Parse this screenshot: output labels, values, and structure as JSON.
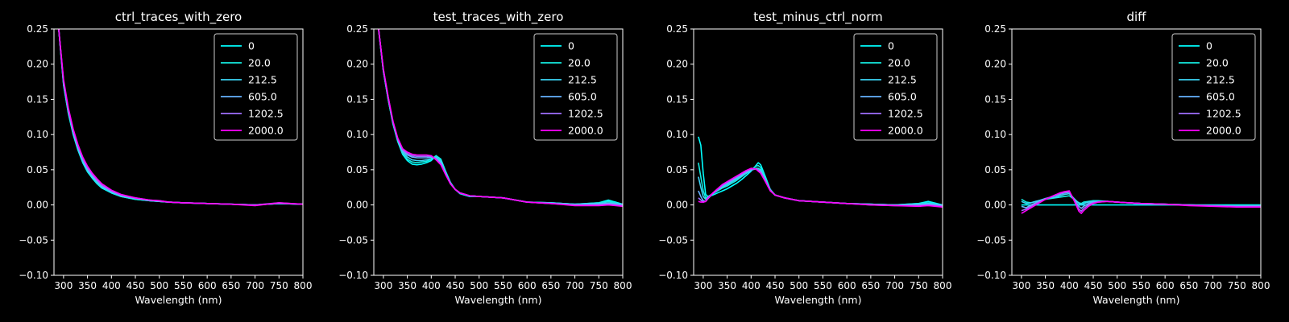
{
  "figure": {
    "background": "#000000",
    "foreground": "#ffffff"
  },
  "chart_data": [
    {
      "type": "line",
      "title": "ctrl_traces_with_zero",
      "xlabel": "Wavelength (nm)",
      "ylabel": "",
      "xlim": [
        280,
        800
      ],
      "ylim": [
        -0.1,
        0.25
      ],
      "xticks": [
        "300",
        "350",
        "400",
        "450",
        "500",
        "550",
        "600",
        "650",
        "700",
        "750",
        "800"
      ],
      "yticks": [
        "−0.10",
        "−0.05",
        "0.00",
        "0.05",
        "0.10",
        "0.15",
        "0.20",
        "0.25"
      ],
      "grid": false,
      "legend_position": "top-right",
      "x": [
        290,
        300,
        310,
        320,
        330,
        340,
        350,
        360,
        370,
        380,
        400,
        420,
        450,
        480,
        500,
        520,
        550,
        600,
        650,
        700,
        750,
        800
      ],
      "series": [
        {
          "name": "0",
          "color": "#00ffff",
          "values": [
            0.25,
            0.17,
            0.13,
            0.1,
            0.078,
            0.06,
            0.047,
            0.038,
            0.03,
            0.024,
            0.017,
            0.012,
            0.008,
            0.006,
            0.005,
            0.004,
            0.003,
            0.002,
            0.001,
            0.0,
            0.002,
            0.001
          ]
        },
        {
          "name": "20.0",
          "color": "#14ebe0",
          "values": [
            0.25,
            0.171,
            0.131,
            0.101,
            0.079,
            0.061,
            0.048,
            0.039,
            0.031,
            0.025,
            0.018,
            0.012,
            0.008,
            0.006,
            0.005,
            0.004,
            0.003,
            0.002,
            0.001,
            0.0,
            0.002,
            0.001
          ]
        },
        {
          "name": "212.5",
          "color": "#3cd4f5",
          "values": [
            0.25,
            0.172,
            0.132,
            0.102,
            0.08,
            0.062,
            0.049,
            0.04,
            0.032,
            0.026,
            0.018,
            0.013,
            0.009,
            0.006,
            0.005,
            0.004,
            0.003,
            0.002,
            0.001,
            0.0,
            0.002,
            0.001
          ]
        },
        {
          "name": "605.0",
          "color": "#66b2ff",
          "values": [
            0.25,
            0.174,
            0.134,
            0.104,
            0.082,
            0.064,
            0.051,
            0.042,
            0.034,
            0.027,
            0.019,
            0.013,
            0.009,
            0.007,
            0.005,
            0.004,
            0.003,
            0.002,
            0.001,
            0.0,
            0.002,
            0.001
          ]
        },
        {
          "name": "1202.5",
          "color": "#a070ff",
          "values": [
            0.25,
            0.176,
            0.136,
            0.106,
            0.084,
            0.066,
            0.053,
            0.043,
            0.035,
            0.028,
            0.02,
            0.014,
            0.01,
            0.007,
            0.006,
            0.004,
            0.003,
            0.002,
            0.001,
            0.0,
            0.003,
            0.001
          ]
        },
        {
          "name": "2000.0",
          "color": "#ff00ff",
          "values": [
            0.25,
            0.178,
            0.138,
            0.108,
            0.086,
            0.068,
            0.055,
            0.045,
            0.037,
            0.03,
            0.021,
            0.015,
            0.01,
            0.007,
            0.006,
            0.004,
            0.003,
            0.002,
            0.001,
            -0.001,
            0.003,
            0.001
          ]
        }
      ]
    },
    {
      "type": "line",
      "title": "test_traces_with_zero",
      "xlabel": "Wavelength (nm)",
      "ylabel": "",
      "xlim": [
        280,
        800
      ],
      "ylim": [
        -0.1,
        0.25
      ],
      "xticks": [
        "300",
        "350",
        "400",
        "450",
        "500",
        "550",
        "600",
        "650",
        "700",
        "750",
        "800"
      ],
      "yticks": [
        "−0.10",
        "−0.05",
        "0.00",
        "0.05",
        "0.10",
        "0.15",
        "0.20",
        "0.25"
      ],
      "grid": false,
      "legend_position": "top-right",
      "x": [
        290,
        300,
        310,
        320,
        330,
        340,
        350,
        360,
        370,
        380,
        390,
        400,
        410,
        420,
        430,
        440,
        450,
        460,
        480,
        500,
        550,
        600,
        650,
        700,
        750,
        770,
        800
      ],
      "series": [
        {
          "name": "0",
          "color": "#00ffff",
          "values": [
            0.25,
            0.19,
            0.15,
            0.115,
            0.09,
            0.072,
            0.063,
            0.058,
            0.057,
            0.058,
            0.06,
            0.063,
            0.07,
            0.065,
            0.048,
            0.032,
            0.022,
            0.016,
            0.012,
            0.012,
            0.01,
            0.004,
            0.003,
            0.001,
            0.003,
            0.007,
            0.001
          ]
        },
        {
          "name": "20.0",
          "color": "#14ebe0",
          "values": [
            0.25,
            0.19,
            0.15,
            0.115,
            0.091,
            0.073,
            0.065,
            0.061,
            0.06,
            0.061,
            0.062,
            0.065,
            0.07,
            0.064,
            0.047,
            0.032,
            0.022,
            0.017,
            0.013,
            0.012,
            0.01,
            0.004,
            0.003,
            0.001,
            0.003,
            0.005,
            0.001
          ]
        },
        {
          "name": "212.5",
          "color": "#3cd4f5",
          "values": [
            0.25,
            0.19,
            0.151,
            0.116,
            0.092,
            0.075,
            0.068,
            0.064,
            0.063,
            0.063,
            0.064,
            0.066,
            0.068,
            0.062,
            0.046,
            0.031,
            0.022,
            0.017,
            0.013,
            0.012,
            0.01,
            0.004,
            0.003,
            0.001,
            0.002,
            0.003,
            0.001
          ]
        },
        {
          "name": "605.0",
          "color": "#66b2ff",
          "values": [
            0.25,
            0.191,
            0.152,
            0.117,
            0.093,
            0.077,
            0.071,
            0.068,
            0.067,
            0.067,
            0.067,
            0.068,
            0.066,
            0.06,
            0.045,
            0.031,
            0.022,
            0.017,
            0.013,
            0.012,
            0.01,
            0.004,
            0.002,
            0.0,
            0.001,
            0.002,
            0.0
          ]
        },
        {
          "name": "1202.5",
          "color": "#a070ff",
          "values": [
            0.25,
            0.192,
            0.153,
            0.118,
            0.094,
            0.079,
            0.073,
            0.07,
            0.069,
            0.069,
            0.069,
            0.069,
            0.065,
            0.058,
            0.044,
            0.03,
            0.022,
            0.017,
            0.013,
            0.012,
            0.01,
            0.004,
            0.002,
            0.0,
            0.0,
            0.001,
            -0.001
          ]
        },
        {
          "name": "2000.0",
          "color": "#ff00ff",
          "values": [
            0.25,
            0.193,
            0.154,
            0.119,
            0.095,
            0.08,
            0.075,
            0.072,
            0.071,
            0.071,
            0.071,
            0.07,
            0.064,
            0.057,
            0.043,
            0.03,
            0.022,
            0.017,
            0.013,
            0.012,
            0.01,
            0.004,
            0.002,
            -0.001,
            -0.001,
            0.0,
            -0.002
          ]
        }
      ]
    },
    {
      "type": "line",
      "title": "test_minus_ctrl_norm",
      "xlabel": "Wavelength (nm)",
      "ylabel": "",
      "xlim": [
        280,
        800
      ],
      "ylim": [
        -0.1,
        0.25
      ],
      "xticks": [
        "300",
        "350",
        "400",
        "450",
        "500",
        "550",
        "600",
        "650",
        "700",
        "750",
        "800"
      ],
      "yticks": [
        "−0.10",
        "−0.05",
        "0.00",
        "0.05",
        "0.10",
        "0.15",
        "0.20",
        "0.25"
      ],
      "grid": false,
      "legend_position": "top-right",
      "x": [
        290,
        295,
        300,
        305,
        310,
        320,
        330,
        340,
        350,
        360,
        370,
        380,
        390,
        400,
        410,
        415,
        420,
        430,
        440,
        450,
        470,
        500,
        550,
        600,
        650,
        700,
        750,
        770,
        800
      ],
      "series": [
        {
          "name": "0",
          "color": "#00ffff",
          "values": [
            0.097,
            0.085,
            0.045,
            0.015,
            0.012,
            0.014,
            0.017,
            0.02,
            0.023,
            0.027,
            0.031,
            0.036,
            0.042,
            0.048,
            0.056,
            0.06,
            0.057,
            0.04,
            0.022,
            0.014,
            0.01,
            0.006,
            0.004,
            0.002,
            0.001,
            0.0,
            0.002,
            0.005,
            0.0
          ]
        },
        {
          "name": "20.0",
          "color": "#14ebe0",
          "values": [
            0.06,
            0.04,
            0.02,
            0.01,
            0.012,
            0.016,
            0.02,
            0.024,
            0.027,
            0.031,
            0.035,
            0.04,
            0.045,
            0.05,
            0.055,
            0.056,
            0.053,
            0.038,
            0.022,
            0.014,
            0.01,
            0.006,
            0.004,
            0.002,
            0.001,
            0.0,
            0.002,
            0.003,
            0.0
          ]
        },
        {
          "name": "212.5",
          "color": "#3cd4f5",
          "values": [
            0.04,
            0.025,
            0.012,
            0.008,
            0.01,
            0.016,
            0.021,
            0.025,
            0.029,
            0.033,
            0.037,
            0.041,
            0.045,
            0.049,
            0.052,
            0.052,
            0.05,
            0.036,
            0.021,
            0.014,
            0.01,
            0.006,
            0.004,
            0.002,
            0.001,
            0.0,
            0.001,
            0.002,
            0.0
          ]
        },
        {
          "name": "605.0",
          "color": "#66b2ff",
          "values": [
            0.02,
            0.012,
            0.006,
            0.005,
            0.009,
            0.016,
            0.022,
            0.027,
            0.031,
            0.035,
            0.039,
            0.043,
            0.047,
            0.05,
            0.051,
            0.05,
            0.048,
            0.035,
            0.021,
            0.014,
            0.01,
            0.006,
            0.004,
            0.002,
            0.001,
            0.0,
            0.0,
            0.001,
            -0.001
          ]
        },
        {
          "name": "1202.5",
          "color": "#a070ff",
          "values": [
            0.01,
            0.007,
            0.004,
            0.005,
            0.009,
            0.016,
            0.022,
            0.028,
            0.032,
            0.036,
            0.04,
            0.044,
            0.048,
            0.051,
            0.051,
            0.049,
            0.046,
            0.034,
            0.021,
            0.014,
            0.01,
            0.006,
            0.004,
            0.002,
            0.0,
            -0.001,
            -0.001,
            0.0,
            -0.002
          ]
        },
        {
          "name": "2000.0",
          "color": "#ff00ff",
          "values": [
            0.005,
            0.004,
            0.004,
            0.005,
            0.01,
            0.017,
            0.023,
            0.029,
            0.033,
            0.037,
            0.041,
            0.045,
            0.049,
            0.052,
            0.051,
            0.048,
            0.045,
            0.033,
            0.02,
            0.014,
            0.01,
            0.006,
            0.004,
            0.002,
            0.0,
            -0.001,
            -0.002,
            -0.001,
            -0.003
          ]
        }
      ]
    },
    {
      "type": "line",
      "title": "diff",
      "xlabel": "Wavelength (nm)",
      "ylabel": "",
      "xlim": [
        280,
        800
      ],
      "ylim": [
        -0.1,
        0.25
      ],
      "xticks": [
        "300",
        "350",
        "400",
        "450",
        "500",
        "550",
        "600",
        "650",
        "700",
        "750",
        "800"
      ],
      "yticks": [
        "−0.10",
        "−0.05",
        "0.00",
        "0.05",
        "0.10",
        "0.15",
        "0.20",
        "0.25"
      ],
      "grid": false,
      "legend_position": "top-right",
      "x": [
        300,
        310,
        320,
        330,
        340,
        350,
        360,
        370,
        380,
        390,
        400,
        410,
        420,
        425,
        430,
        440,
        450,
        460,
        480,
        500,
        550,
        600,
        650,
        700,
        750,
        800
      ],
      "series": [
        {
          "name": "0",
          "color": "#00ffff",
          "values": [
            0.0,
            0.0,
            0.0,
            0.0,
            0.0,
            0.0,
            0.0,
            0.0,
            0.0,
            0.0,
            0.0,
            0.0,
            0.0,
            0.0,
            0.0,
            0.0,
            0.0,
            0.0,
            0.0,
            0.0,
            0.0,
            0.0,
            0.0,
            0.0,
            0.0,
            0.0
          ]
        },
        {
          "name": "20.0",
          "color": "#14ebe0",
          "values": [
            0.008,
            0.004,
            0.003,
            0.005,
            0.006,
            0.008,
            0.009,
            0.01,
            0.011,
            0.012,
            0.013,
            0.008,
            0.003,
            0.002,
            0.004,
            0.005,
            0.006,
            0.006,
            0.005,
            0.004,
            0.002,
            0.001,
            0.0,
            -0.001,
            -0.001,
            -0.001
          ]
        },
        {
          "name": "212.5",
          "color": "#3cd4f5",
          "values": [
            0.005,
            0.002,
            0.003,
            0.005,
            0.007,
            0.009,
            0.01,
            0.011,
            0.013,
            0.015,
            0.016,
            0.009,
            0.002,
            0.0,
            0.002,
            0.004,
            0.005,
            0.005,
            0.005,
            0.004,
            0.002,
            0.001,
            0.0,
            -0.001,
            -0.002,
            -0.001
          ]
        },
        {
          "name": "605.0",
          "color": "#66b2ff",
          "values": [
            -0.002,
            -0.004,
            0.0,
            0.003,
            0.006,
            0.009,
            0.011,
            0.013,
            0.015,
            0.017,
            0.018,
            0.008,
            -0.002,
            -0.005,
            -0.002,
            0.002,
            0.004,
            0.005,
            0.005,
            0.004,
            0.002,
            0.001,
            0.0,
            -0.001,
            -0.002,
            -0.002
          ]
        },
        {
          "name": "1202.5",
          "color": "#a070ff",
          "values": [
            -0.008,
            -0.006,
            -0.002,
            0.002,
            0.005,
            0.008,
            0.011,
            0.014,
            0.016,
            0.018,
            0.019,
            0.007,
            -0.006,
            -0.009,
            -0.005,
            0.0,
            0.003,
            0.004,
            0.005,
            0.004,
            0.002,
            0.001,
            0.0,
            -0.001,
            -0.002,
            -0.002
          ]
        },
        {
          "name": "2000.0",
          "color": "#ff00ff",
          "values": [
            -0.012,
            -0.008,
            -0.004,
            0.0,
            0.004,
            0.008,
            0.011,
            0.014,
            0.017,
            0.019,
            0.02,
            0.006,
            -0.009,
            -0.012,
            -0.008,
            -0.002,
            0.002,
            0.004,
            0.005,
            0.004,
            0.002,
            0.001,
            -0.001,
            -0.002,
            -0.003,
            -0.003
          ]
        }
      ]
    }
  ]
}
